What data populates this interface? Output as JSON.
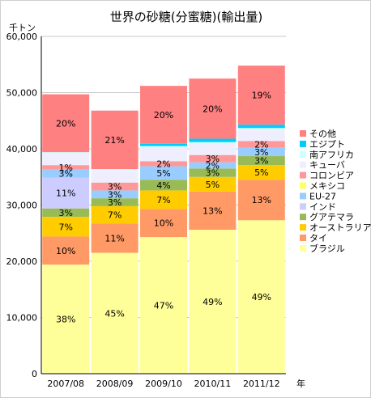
{
  "chart_data": {
    "type": "bar",
    "stacked": true,
    "title": "世界の砂糖(分蜜糖)(輸出量)",
    "ylabel": "千トン",
    "xlabel": "年",
    "ylim": [
      0,
      60000
    ],
    "yticks": [
      0,
      10000,
      20000,
      30000,
      40000,
      50000,
      60000
    ],
    "ytick_labels": [
      "0",
      "10,000",
      "20,000",
      "30,000",
      "40,000",
      "50,000",
      "60,000"
    ],
    "grid": true,
    "legend": "right",
    "categories": [
      "2007/08",
      "2008/09",
      "2009/10",
      "2010/11",
      "2011/12"
    ],
    "series": [
      {
        "name": "ブラジル",
        "color": "#ffff99",
        "values": [
          19400,
          21500,
          24300,
          25600,
          27300
        ],
        "labels": [
          "38%",
          "45%",
          "47%",
          "49%",
          "49%"
        ]
      },
      {
        "name": "タイ",
        "color": "#ff9966",
        "values": [
          5000,
          5200,
          5000,
          6800,
          7200
        ],
        "labels": [
          "10%",
          "11%",
          "10%",
          "13%",
          "13%"
        ]
      },
      {
        "name": "オーストラリア",
        "color": "#ffcc00",
        "values": [
          3500,
          3100,
          3300,
          2600,
          2600
        ],
        "labels": [
          "7%",
          "7%",
          "7%",
          "5%",
          "5%"
        ]
      },
      {
        "name": "グアテマラ",
        "color": "#99bb55",
        "values": [
          1500,
          1400,
          1900,
          1500,
          1600
        ],
        "labels": [
          "3%",
          "3%",
          "4%",
          "3%",
          "3%"
        ]
      },
      {
        "name": "インド",
        "color": "#ccccff",
        "values": [
          5500,
          0,
          0,
          0,
          0
        ],
        "labels": [
          "11%",
          "",
          "",
          "",
          ""
        ]
      },
      {
        "name": "EU-27",
        "color": "#99ccff",
        "values": [
          1400,
          1400,
          2400,
          1100,
          1500
        ],
        "labels": [
          "3%",
          "3%",
          "5%",
          "2%",
          "3%"
        ]
      },
      {
        "name": "メキシコ",
        "color": "#ffff66",
        "values": [
          0,
          0,
          0,
          0,
          0
        ],
        "labels": [
          "",
          "",
          "",
          "",
          ""
        ]
      },
      {
        "name": "コロンビア",
        "color": "#ff9999",
        "values": [
          800,
          1400,
          900,
          1300,
          1200
        ],
        "labels": [
          "1%",
          "3%",
          "2%",
          "3%",
          "2%"
        ]
      },
      {
        "name": "キューバ",
        "color": "#eeeeff",
        "values": [
          2100,
          2200,
          2500,
          2100,
          2100
        ],
        "labels": [
          "",
          "",
          "",
          "",
          ""
        ]
      },
      {
        "name": "南アフリカ",
        "color": "#ccffff",
        "values": [
          200,
          200,
          200,
          200,
          200
        ],
        "labels": [
          "",
          "",
          "",
          "",
          ""
        ]
      },
      {
        "name": "エジプト",
        "color": "#00ccff",
        "values": [
          0,
          0,
          400,
          600,
          600
        ],
        "labels": [
          "",
          "",
          "",
          "",
          ""
        ]
      },
      {
        "name": "その他",
        "color": "#ff8080",
        "values": [
          10300,
          10400,
          10300,
          10700,
          10500
        ],
        "labels": [
          "20%",
          "21%",
          "20%",
          "20%",
          "19%"
        ]
      }
    ]
  }
}
